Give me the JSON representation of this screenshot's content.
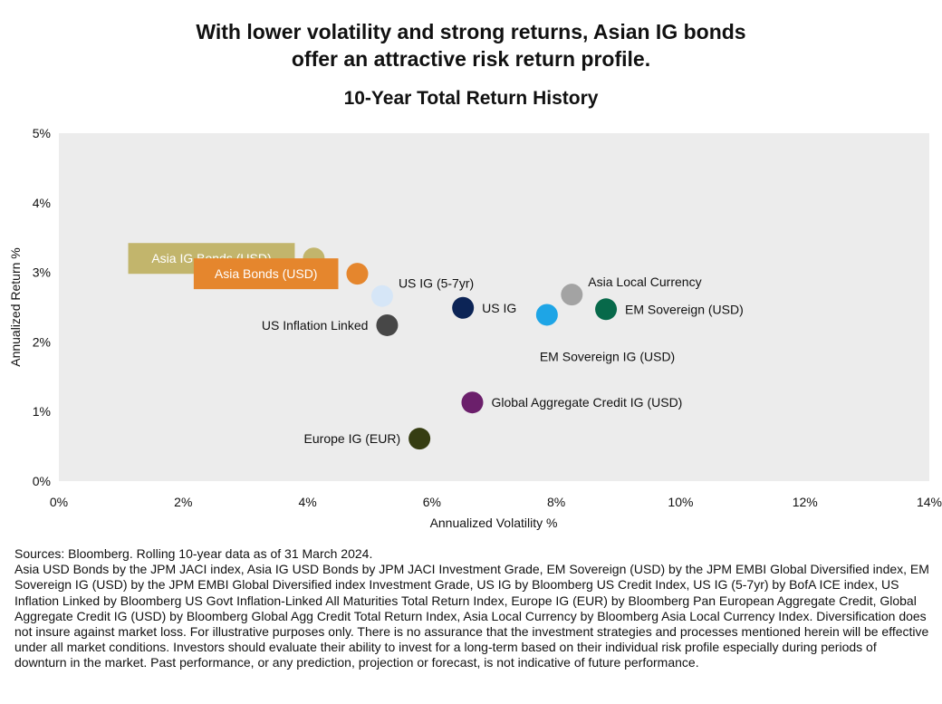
{
  "headline": {
    "line1": "With lower volatility and strong returns, Asian IG bonds",
    "line2": "offer an attractive risk return profile."
  },
  "chart_data": {
    "type": "scatter",
    "title": "10-Year Total Return History",
    "xlabel": "Annualized Volatility %",
    "ylabel": "Annualized Return %",
    "xlim": [
      0,
      14
    ],
    "ylim": [
      0,
      5
    ],
    "xticks": [
      "0%",
      "2%",
      "4%",
      "6%",
      "8%",
      "10%",
      "12%",
      "14%"
    ],
    "yticks": [
      "0%",
      "1%",
      "2%",
      "3%",
      "4%",
      "5%"
    ],
    "plot_background": "#ececec",
    "grid": false,
    "points": [
      {
        "label": "Asia IG Bonds (USD)",
        "x": 4.1,
        "y": 3.2,
        "color": "#c2b56c",
        "label_style": "box",
        "label_side": "left"
      },
      {
        "label": "Asia Bonds (USD)",
        "x": 4.8,
        "y": 2.98,
        "color": "#e5862d",
        "label_style": "box",
        "label_side": "left"
      },
      {
        "label": "US IG (5-7yr)",
        "x": 5.2,
        "y": 2.66,
        "color": "#d6e6f7",
        "label_style": "text",
        "label_side": "above-right"
      },
      {
        "label": "US Inflation Linked",
        "x": 5.28,
        "y": 2.24,
        "color": "#474747",
        "label_style": "text",
        "label_side": "left"
      },
      {
        "label": "US IG",
        "x": 6.5,
        "y": 2.49,
        "color": "#0c2456",
        "label_style": "text",
        "label_side": "right"
      },
      {
        "label": "Asia Local Currency",
        "x": 8.25,
        "y": 2.68,
        "color": "#a3a3a3",
        "label_style": "text",
        "label_side": "above-right"
      },
      {
        "label": "EM Sovereign (USD)",
        "x": 8.8,
        "y": 2.47,
        "color": "#07694a",
        "label_style": "text",
        "label_side": "right"
      },
      {
        "label": "EM Sovereign IG (USD)",
        "x": 7.85,
        "y": 2.39,
        "color": "#1ea5e6",
        "label_style": "text",
        "label_side": "below-right"
      },
      {
        "label": "Global Aggregate Credit IG (USD)",
        "x": 6.65,
        "y": 1.13,
        "color": "#6b1f6b",
        "label_style": "text",
        "label_side": "right"
      },
      {
        "label": "Europe IG (EUR)",
        "x": 5.8,
        "y": 0.61,
        "color": "#363d12",
        "label_style": "text",
        "label_side": "left"
      }
    ]
  },
  "source": {
    "line1": "Sources: Bloomberg. Rolling 10-year data as of 31 March 2024.",
    "body": "Asia USD Bonds by the JPM JACI index, Asia IG USD Bonds by JPM JACI Investment Grade, EM Sovereign (USD) by the JPM EMBI Global Diversified index, EM Sovereign IG (USD) by the JPM EMBI Global Diversified index Investment Grade, US IG by Bloomberg US Credit Index, US IG (5-7yr) by BofA ICE index, US Inflation Linked by Bloomberg US Govt Inflation-Linked All Maturities Total Return Index, Europe IG (EUR) by Bloomberg Pan European Aggregate Credit, Global Aggregate Credit IG (USD) by Bloomberg Global Agg Credit Total Return Index, Asia Local Currency by Bloomberg Asia Local Currency Index. Diversification does not insure against market loss. For illustrative purposes only. There is no assurance that the investment strategies and processes mentioned herein will be effective under all market conditions. Investors should evaluate their ability to invest for a long-term based on their individual risk profile especially during periods of downturn in the market. Past performance, or any prediction, projection or forecast, is not indicative of future performance."
  }
}
